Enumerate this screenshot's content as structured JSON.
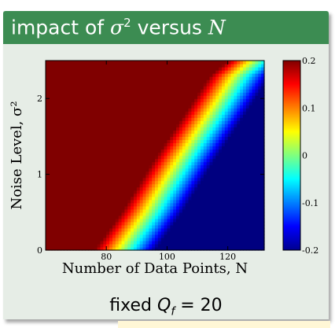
{
  "block": {
    "title_pre": "impact of ",
    "title_sigma": "σ",
    "title_exp": "2",
    "title_mid": " versus ",
    "title_N": "N"
  },
  "caption": {
    "pre": "fixed ",
    "Q": "Q",
    "sub": "f",
    "post": " = 20"
  },
  "chart_data": {
    "type": "heatmap",
    "xlabel": "Number of Data Points, N",
    "ylabel": "Noise Level, σ²",
    "xlim": [
      60,
      132
    ],
    "ylim": [
      0,
      2.5
    ],
    "x_ticks": [
      80,
      100,
      120
    ],
    "y_ticks": [
      0,
      1,
      2
    ],
    "colorbar": {
      "range": [
        -0.2,
        0.2
      ],
      "ticks": [
        -0.2,
        -0.1,
        0,
        0.1,
        0.2
      ],
      "tick_labels": [
        "-0.2",
        "-0.1",
        "0",
        "0.1",
        "0.2"
      ],
      "colormap": "jet"
    },
    "saturation_boundary": {
      "description": "region left of this curve is saturated at 0.2",
      "x": [
        76,
        85,
        95,
        105,
        114,
        120
      ],
      "y": [
        0,
        0.5,
        1.15,
        1.75,
        2.3,
        2.5
      ]
    },
    "value_slope_per_unit_N": 0.02
  }
}
